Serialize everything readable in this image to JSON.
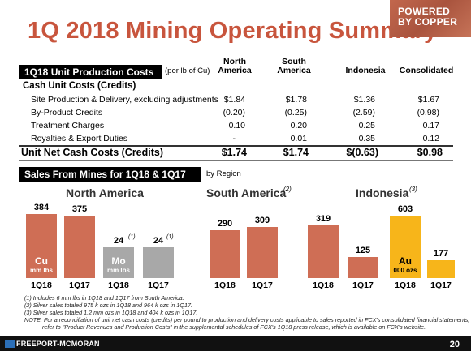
{
  "title": "1Q 2018 Mining Operating Summary",
  "badge": {
    "line1": "POWERED",
    "line2": "BY COPPER"
  },
  "costs": {
    "header": "1Q18 Unit Production Costs",
    "unit_note": "(per lb of Cu)",
    "columns": [
      {
        "line1": "North",
        "line2": "America"
      },
      {
        "line1": "South",
        "line2": "America"
      },
      {
        "line1": "Indonesia",
        "line2": ""
      },
      {
        "line1": "Consolidated",
        "line2": ""
      }
    ],
    "section_label": "Cash Unit Costs (Credits)",
    "rows": [
      {
        "label": "Site Production & Delivery, excluding adjustments",
        "values": [
          "$1.84",
          "$1.78",
          "$1.36",
          "$1.67"
        ]
      },
      {
        "label": "By-Product Credits",
        "values": [
          "(0.20)",
          "(0.25)",
          "(2.59)",
          "(0.98)"
        ]
      },
      {
        "label": "Treatment Charges",
        "values": [
          "0.10",
          "0.20",
          "0.25",
          "0.17"
        ]
      },
      {
        "label": "Royalties & Export Duties",
        "values": [
          "-",
          "0.01",
          "0.35",
          "0.12"
        ]
      }
    ],
    "total": {
      "label": "Unit Net Cash Costs (Credits)",
      "values": [
        "$1.74",
        "$1.74",
        "$(0.63)",
        "$0.98"
      ]
    }
  },
  "sales": {
    "header": "Sales From Mines for 1Q18 & 1Q17",
    "by_label": "by Region",
    "regions": {
      "north_america": {
        "name": "North America",
        "note": ""
      },
      "south_america": {
        "name": "South America",
        "note": "(2)"
      },
      "indonesia": {
        "name": "Indonesia",
        "note": "(3)"
      }
    },
    "units": {
      "cu": {
        "name": "Cu",
        "unit": "mm lbs"
      },
      "mo": {
        "name": "Mo",
        "unit": "mm lbs"
      },
      "au": {
        "name": "Au",
        "unit": "000 ozs"
      }
    },
    "mo_note": "(1)"
  },
  "chart_data": [
    {
      "type": "bar",
      "title": "North America",
      "series": [
        {
          "name": "Cu",
          "values": [
            384,
            375
          ]
        }
      ],
      "categories": [
        "1Q18",
        "1Q17"
      ],
      "unit": "mm lbs"
    },
    {
      "type": "bar",
      "title": "North America",
      "series": [
        {
          "name": "Mo",
          "values": [
            24,
            24
          ]
        }
      ],
      "categories": [
        "1Q18",
        "1Q17"
      ],
      "unit": "mm lbs"
    },
    {
      "type": "bar",
      "title": "South America",
      "series": [
        {
          "name": "Cu",
          "values": [
            290,
            309
          ]
        }
      ],
      "categories": [
        "1Q18",
        "1Q17"
      ],
      "unit": "mm lbs"
    },
    {
      "type": "bar",
      "title": "Indonesia",
      "series": [
        {
          "name": "Cu",
          "values": [
            319,
            125
          ]
        }
      ],
      "categories": [
        "1Q18",
        "1Q17"
      ],
      "unit": "mm lbs"
    },
    {
      "type": "bar",
      "title": "Indonesia",
      "series": [
        {
          "name": "Au",
          "values": [
            603,
            177
          ]
        }
      ],
      "categories": [
        "1Q18",
        "1Q17"
      ],
      "unit": "000 ozs"
    }
  ],
  "notes": [
    "(1) Includes 6 mm lbs in 1Q18 and 1Q17 from South America.",
    "(2) Silver sales totaled 975 k ozs in 1Q18 and 964 k ozs in 1Q17.",
    "(3) Silver sales totaled 1.2 mm ozs in 1Q18 and 404 k ozs in 1Q17.",
    "NOTE: For a reconciliation of unit net cash costs (credits) per pound to production and delivery costs applicable to sales reported in FCX's consolidated financial statements,",
    "refer to \"Product Revenues and Production Costs\" in the supplemental schedules of FCX's 1Q18 press release, which is available on FCX's website."
  ],
  "footer": {
    "logo": "FREEPORT-MCMORAN",
    "page": "20"
  },
  "colors": {
    "title": "#c8553d",
    "copper": "#cf6e55",
    "moly": "#a8a8a8",
    "gold": "#f7b51a"
  }
}
